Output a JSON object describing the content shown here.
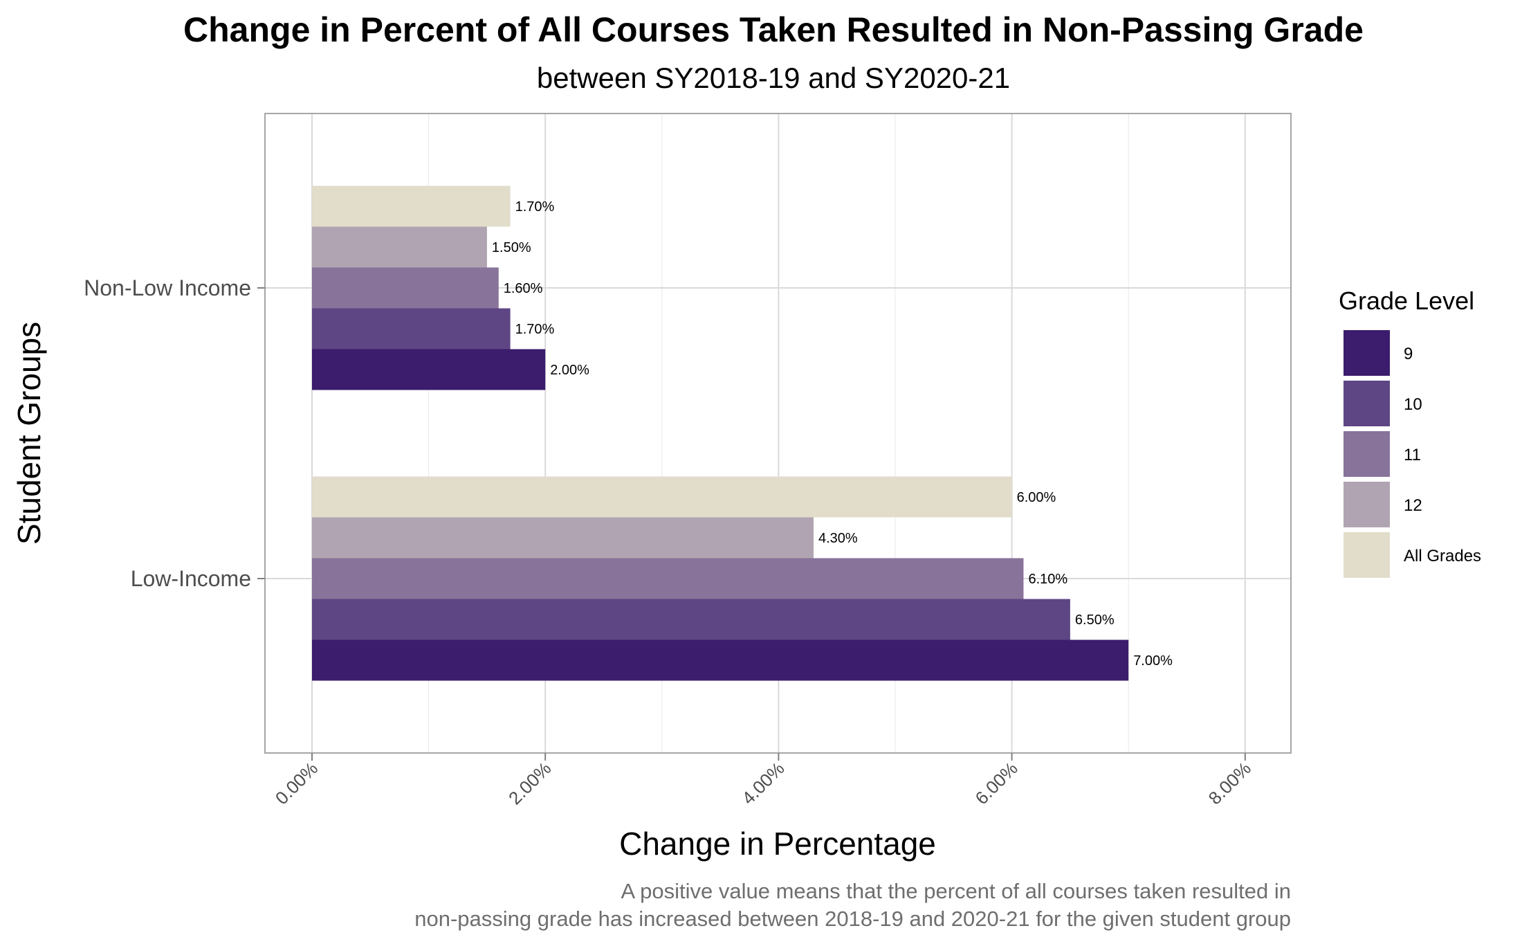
{
  "chart_data": {
    "type": "bar",
    "orientation": "horizontal",
    "title": "Change in Percent of All Courses Taken Resulted in Non-Passing Grade",
    "subtitle": "between SY2018-19 and SY2020-21",
    "xlabel": "Change in Percentage",
    "ylabel": "Student Groups",
    "xlim": [
      0,
      8
    ],
    "x_ticks": [
      0,
      2,
      4,
      6,
      8
    ],
    "x_tick_labels": [
      "0.00%",
      "2.00%",
      "4.00%",
      "6.00%",
      "8.00%"
    ],
    "categories": [
      "Non-Low Income",
      "Low-Income"
    ],
    "series": [
      {
        "name": "9",
        "color": "#3b1c6d",
        "values": [
          2.0,
          7.0
        ],
        "labels": [
          "2.00%",
          "7.00%"
        ]
      },
      {
        "name": "10",
        "color": "#5e4684",
        "values": [
          1.7,
          6.5
        ],
        "labels": [
          "1.70%",
          "6.50%"
        ]
      },
      {
        "name": "11",
        "color": "#88739a",
        "values": [
          1.6,
          6.1
        ],
        "labels": [
          "1.60%",
          "6.10%"
        ]
      },
      {
        "name": "12",
        "color": "#b1a4b2",
        "values": [
          1.5,
          4.3
        ],
        "labels": [
          "1.50%",
          "4.30%"
        ]
      },
      {
        "name": "All Grades",
        "color": "#e2ddca",
        "values": [
          1.7,
          6.0
        ],
        "labels": [
          "1.70%",
          "6.00%"
        ]
      }
    ],
    "legend_title": "Grade Level",
    "legend_position": "right",
    "grid": true,
    "caption_lines": [
      "A positive value means that the percent of all courses taken resulted in ",
      "non-passing grade has increased between 2018-19 and 2020-21 for the given student group"
    ]
  }
}
